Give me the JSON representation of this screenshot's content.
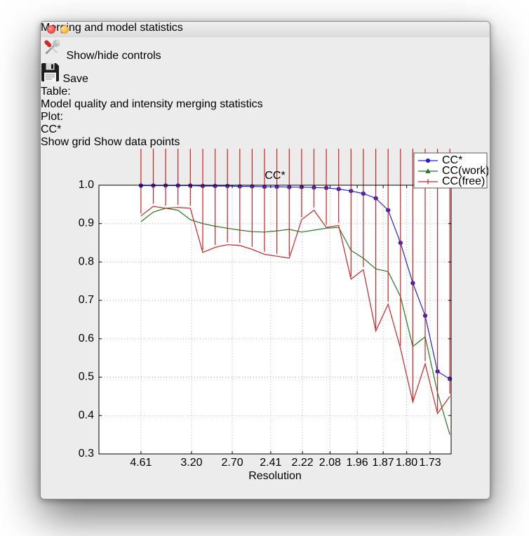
{
  "window": {
    "title": "Merging and model statistics"
  },
  "toolbar": {
    "show_hide_label": "Show/hide controls",
    "save_label": "Save"
  },
  "controls": {
    "table_label": "Table:",
    "table_value": "Model quality and intensity merging statistics",
    "plot_label": "Plot:",
    "plot_value": "CC*",
    "checkboxes": [
      {
        "label": "Show grid",
        "checked": true
      },
      {
        "label": "Show data points",
        "checked": true
      }
    ]
  },
  "chart_data": {
    "type": "line",
    "title": "CC*",
    "xlabel": "Resolution",
    "ylim": [
      0.3,
      1.0
    ],
    "yticks": [
      0.3,
      0.4,
      0.5,
      0.6,
      0.7,
      0.8,
      0.9,
      1.0
    ],
    "xlim": [
      -3.4,
      25.1
    ],
    "grid": true,
    "show_markers": true,
    "legend_position": "upper right",
    "xticks": [
      {
        "label": "4.61",
        "x": 0
      },
      {
        "label": "3.20",
        "x": 4.09
      },
      {
        "label": "2.70",
        "x": 7.39
      },
      {
        "label": "2.41",
        "x": 10.5
      },
      {
        "label": "2.22",
        "x": 13.07
      },
      {
        "label": "2.08",
        "x": 15.3
      },
      {
        "label": "1.96",
        "x": 17.5
      },
      {
        "label": "1.87",
        "x": 19.6
      },
      {
        "label": "1.80",
        "x": 21.5
      },
      {
        "label": "1.73",
        "x": 23.4
      }
    ],
    "series": [
      {
        "name": "CC*",
        "color": "#2222cc",
        "marker": "circle",
        "values": [
          0.999,
          0.999,
          0.999,
          0.999,
          0.999,
          0.998,
          0.998,
          0.998,
          0.997,
          0.997,
          0.996,
          0.996,
          0.995,
          0.995,
          0.994,
          0.993,
          0.99,
          0.985,
          0.978,
          0.966,
          0.935,
          0.85,
          0.745,
          0.66,
          0.515,
          0.495
        ]
      },
      {
        "name": "CC(work)",
        "color": "#1f7a1f",
        "marker": "triangle",
        "values": [
          0.905,
          0.93,
          0.94,
          0.935,
          0.91,
          0.9,
          0.893,
          0.888,
          0.883,
          0.879,
          0.878,
          0.881,
          0.885,
          0.878,
          0.883,
          0.888,
          0.89,
          0.83,
          0.81,
          0.782,
          0.775,
          0.71,
          0.58,
          0.605,
          0.46,
          0.35
        ]
      },
      {
        "name": "CC(free)",
        "color": "#cc2222",
        "marker": "vtick",
        "values": [
          0.92,
          0.945,
          0.94,
          0.942,
          0.94,
          0.825,
          0.838,
          0.845,
          0.843,
          0.833,
          0.82,
          0.815,
          0.81,
          0.91,
          0.935,
          0.89,
          0.895,
          0.755,
          0.78,
          0.62,
          0.69,
          0.575,
          0.435,
          0.535,
          0.405,
          0.45
        ]
      }
    ]
  }
}
